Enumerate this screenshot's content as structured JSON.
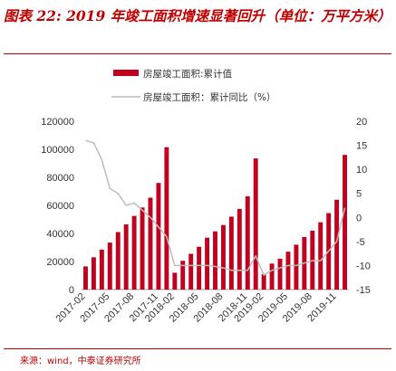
{
  "figure": {
    "title": "图表 22: 2019 年竣工面积增速显著回升（单位：万平方米）",
    "source": "来源：wind，中泰证券研究所"
  },
  "colors": {
    "bar": "#c0001e",
    "line": "#bdbdbd",
    "accent": "#c00000"
  },
  "chart_data": {
    "type": "bar",
    "legend_position": "top-center",
    "grid": false,
    "legend": [
      "房屋竣工面积:累计值",
      "房屋竣工面积：累计同比（%）"
    ],
    "x": [
      "2017-02",
      "2017-03",
      "2017-04",
      "2017-05",
      "2017-06",
      "2017-07",
      "2017-08",
      "2017-09",
      "2017-10",
      "2017-11",
      "2017-12",
      "2018-02",
      "2018-03",
      "2018-04",
      "2018-05",
      "2018-06",
      "2018-07",
      "2018-08",
      "2018-09",
      "2018-10",
      "2018-11",
      "2018-12",
      "2019-02",
      "2019-03",
      "2019-04",
      "2019-05",
      "2019-06",
      "2019-07",
      "2019-08",
      "2019-09",
      "2019-10",
      "2019-11",
      "2019-12"
    ],
    "xtick_labels": [
      "2017-02",
      "2017-05",
      "2017-08",
      "2017-11",
      "2018-02",
      "2018-05",
      "2018-08",
      "2018-11",
      "2019-02",
      "2019-05",
      "2019-08",
      "2019-11"
    ],
    "series": [
      {
        "name": "房屋竣工面积:累计值",
        "type": "bar",
        "axis": "left",
        "values": [
          16500,
          23000,
          28500,
          33500,
          41000,
          46500,
          52500,
          58500,
          65500,
          76000,
          101500,
          12000,
          20500,
          25500,
          30500,
          37000,
          41500,
          46000,
          52000,
          57500,
          66500,
          93500,
          11000,
          18500,
          22000,
          27000,
          32000,
          37500,
          42000,
          48000,
          54500,
          64000,
          96000
        ]
      },
      {
        "name": "房屋竣工面积：累计同比（%）",
        "type": "line",
        "axis": "right",
        "values": [
          16,
          15.5,
          12,
          6,
          5,
          2.5,
          3,
          1.5,
          0,
          -2,
          -4,
          -10,
          -10,
          -10,
          -10,
          -10,
          -10.2,
          -10.5,
          -11,
          -11,
          -11,
          -8,
          -12,
          -11,
          -10.5,
          -10,
          -10,
          -9.5,
          -9,
          -9,
          -7,
          -5,
          2
        ]
      }
    ],
    "y_left": {
      "ylim": [
        0,
        120000
      ],
      "ticks": [
        "0",
        "20000",
        "40000",
        "60000",
        "80000",
        "100000",
        "120000"
      ]
    },
    "y_right": {
      "ylim": [
        -15,
        20
      ],
      "ticks": [
        "-15",
        "-10",
        "-5",
        "0",
        "5",
        "10",
        "15",
        "20"
      ]
    }
  }
}
